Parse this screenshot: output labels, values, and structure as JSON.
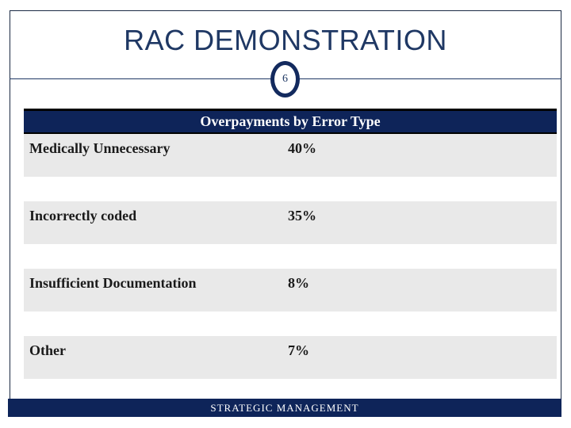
{
  "slide": {
    "title": "RAC DEMONSTRATION",
    "page_number": "6",
    "footer_text": "STRATEGIC MANAGEMENT"
  },
  "table": {
    "header_title": "Overpayments by Error Type",
    "rows": [
      {
        "label": "Medically Unnecessary",
        "value": "40%"
      },
      {
        "label": "Incorrectly coded",
        "value": "35%"
      },
      {
        "label": "Insufficient Documentation",
        "value": "8%"
      },
      {
        "label": "Other",
        "value": "7%"
      }
    ]
  },
  "colors": {
    "navy_fill": "#0e2459",
    "title_navy": "#1f3864",
    "row_background": "#e9e9e9",
    "border_black": "#000000",
    "background": "#ffffff"
  },
  "chart_data": {
    "type": "table",
    "title": "Overpayments by Error Type",
    "categories": [
      "Medically Unnecessary",
      "Incorrectly coded",
      "Insufficient Documentation",
      "Other"
    ],
    "values": [
      40,
      35,
      8,
      7
    ],
    "unit": "%"
  }
}
